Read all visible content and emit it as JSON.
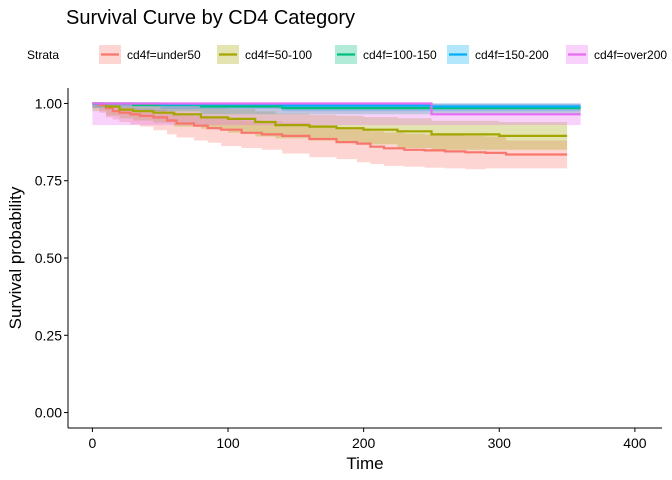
{
  "chart_data": {
    "type": "line",
    "subtype": "step-survival-with-confidence-bands",
    "title": "Survival Curve by CD4 Category",
    "xlabel": "Time",
    "ylabel": "Survival probability",
    "xlim": [
      -18,
      420
    ],
    "ylim": [
      -0.05,
      1.05
    ],
    "xticks": [
      0,
      100,
      200,
      300,
      400
    ],
    "yticks": [
      0.0,
      0.25,
      0.5,
      0.75,
      1.0
    ],
    "xtick_labels": [
      "0",
      "100",
      "200",
      "300",
      "400"
    ],
    "ytick_labels": [
      "0.00",
      "0.25",
      "0.50",
      "0.75",
      "1.00"
    ],
    "grid": false,
    "legend": {
      "title": "Strata",
      "placement": "top",
      "labels": [
        "cd4f=under50",
        "cd4f=50-100",
        "cd4f=100-150",
        "cd4f=150-200",
        "cd4f=over200"
      ]
    },
    "series": [
      {
        "name": "cd4f=under50",
        "color": "#F8766D",
        "x": [
          0,
          5,
          10,
          15,
          20,
          28,
          35,
          45,
          55,
          62,
          75,
          85,
          95,
          110,
          125,
          140,
          160,
          180,
          195,
          205,
          215,
          230,
          245,
          260,
          275,
          290,
          305,
          350
        ],
        "y": [
          1.0,
          0.995,
          0.985,
          0.975,
          0.97,
          0.965,
          0.96,
          0.955,
          0.945,
          0.935,
          0.928,
          0.92,
          0.915,
          0.905,
          0.9,
          0.895,
          0.885,
          0.875,
          0.87,
          0.86,
          0.855,
          0.85,
          0.848,
          0.845,
          0.842,
          0.84,
          0.835,
          0.835
        ],
        "lower": [
          1.0,
          0.985,
          0.97,
          0.955,
          0.948,
          0.94,
          0.932,
          0.925,
          0.913,
          0.9,
          0.89,
          0.88,
          0.873,
          0.862,
          0.856,
          0.85,
          0.838,
          0.826,
          0.82,
          0.81,
          0.804,
          0.798,
          0.795,
          0.792,
          0.79,
          0.787,
          0.79,
          0.79
        ],
        "upper": [
          1.0,
          1.0,
          0.997,
          0.99,
          0.988,
          0.985,
          0.983,
          0.98,
          0.973,
          0.965,
          0.96,
          0.955,
          0.952,
          0.945,
          0.942,
          0.938,
          0.93,
          0.922,
          0.918,
          0.91,
          0.906,
          0.902,
          0.9,
          0.898,
          0.895,
          0.893,
          0.88,
          0.88
        ]
      },
      {
        "name": "cd4f=50-100",
        "color": "#A3A500",
        "x": [
          0,
          10,
          20,
          30,
          45,
          60,
          80,
          100,
          120,
          135,
          160,
          180,
          200,
          225,
          250,
          300,
          350
        ],
        "y": [
          1.0,
          0.99,
          0.98,
          0.975,
          0.97,
          0.965,
          0.955,
          0.95,
          0.94,
          0.93,
          0.925,
          0.92,
          0.915,
          0.91,
          0.9,
          0.895,
          0.895
        ],
        "lower": [
          1.0,
          0.975,
          0.96,
          0.952,
          0.945,
          0.938,
          0.925,
          0.918,
          0.905,
          0.893,
          0.887,
          0.88,
          0.874,
          0.868,
          0.856,
          0.85,
          0.85
        ],
        "upper": [
          1.0,
          1.0,
          1.0,
          0.998,
          0.995,
          0.992,
          0.985,
          0.982,
          0.975,
          0.967,
          0.963,
          0.96,
          0.956,
          0.952,
          0.944,
          0.94,
          0.94
        ]
      },
      {
        "name": "cd4f=100-150",
        "color": "#00BF7D",
        "x": [
          0,
          30,
          80,
          140,
          250,
          360
        ],
        "y": [
          1.0,
          0.995,
          0.99,
          0.985,
          0.985,
          0.985
        ],
        "lower": [
          1.0,
          0.985,
          0.975,
          0.965,
          0.965,
          0.965
        ],
        "upper": [
          1.0,
          1.0,
          1.0,
          1.0,
          1.0,
          1.0
        ]
      },
      {
        "name": "cd4f=150-200",
        "color": "#00B0F6",
        "x": [
          0,
          50,
          140,
          250,
          360
        ],
        "y": [
          1.0,
          0.997,
          0.993,
          0.99,
          0.99
        ],
        "lower": [
          1.0,
          0.99,
          0.982,
          0.975,
          0.975
        ],
        "upper": [
          1.0,
          1.0,
          1.0,
          1.0,
          1.0
        ]
      },
      {
        "name": "cd4f=over200",
        "color": "#E76BF3",
        "x": [
          0,
          250,
          360
        ],
        "y": [
          1.0,
          0.965,
          0.965
        ],
        "lower": [
          1.0,
          0.93,
          0.93
        ],
        "upper": [
          1.0,
          1.0,
          1.0
        ]
      }
    ]
  }
}
